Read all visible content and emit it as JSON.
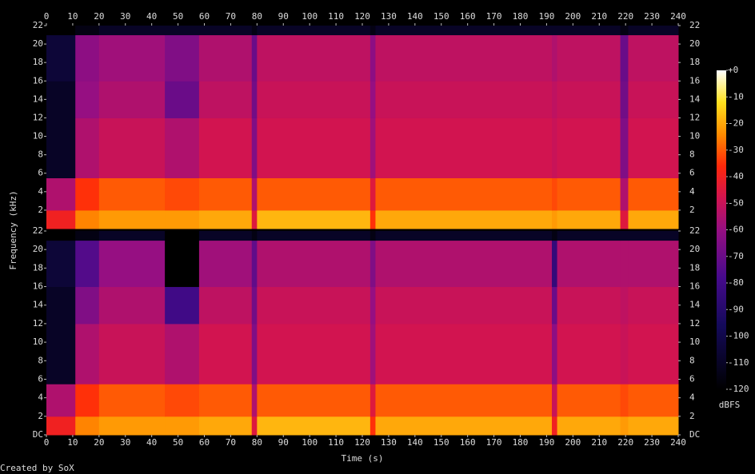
{
  "chart_data": [
    {
      "type": "heatmap",
      "x_edges": [
        0,
        11,
        20,
        45,
        58,
        78,
        80,
        123,
        125,
        192,
        194,
        218,
        221,
        240
      ],
      "y_edges": [
        0,
        2,
        5.5,
        12,
        16,
        21,
        22
      ],
      "z": [
        [
          -40,
          -25,
          -22,
          -22,
          -20,
          -45,
          -18,
          -35,
          -20,
          -22,
          -20,
          -45,
          -20
        ],
        [
          -55,
          -35,
          -30,
          -32,
          -30,
          -55,
          -30,
          -45,
          -30,
          -32,
          -30,
          -55,
          -30
        ],
        [
          -110,
          -55,
          -50,
          -55,
          -48,
          -65,
          -48,
          -58,
          -48,
          -50,
          -48,
          -65,
          -48
        ],
        [
          -110,
          -60,
          -55,
          -70,
          -52,
          -68,
          -50,
          -60,
          -50,
          -52,
          -50,
          -68,
          -50
        ],
        [
          -105,
          -62,
          -58,
          -65,
          -55,
          -70,
          -52,
          -62,
          -52,
          -55,
          -52,
          -70,
          -52
        ],
        [
          -120,
          -115,
          -110,
          -110,
          -110,
          -115,
          -110,
          -115,
          -110,
          -110,
          -110,
          -115,
          -110
        ]
      ],
      "xlim": [
        0,
        240
      ],
      "ylim": [
        0,
        22
      ],
      "xticks": [
        0,
        10,
        20,
        30,
        40,
        50,
        60,
        70,
        80,
        90,
        100,
        110,
        120,
        130,
        140,
        150,
        160,
        170,
        180,
        190,
        200,
        210,
        220,
        230,
        240
      ],
      "yticks": [
        2,
        4,
        6,
        8,
        10,
        12,
        14,
        16,
        18,
        20,
        22
      ]
    },
    {
      "type": "heatmap",
      "x_edges": [
        0,
        11,
        20,
        45,
        58,
        78,
        80,
        123,
        125,
        192,
        194,
        218,
        221,
        240
      ],
      "y_edges": [
        0,
        2,
        5.5,
        12,
        16,
        21,
        22
      ],
      "z": [
        [
          -40,
          -25,
          -22,
          -22,
          -20,
          -45,
          -18,
          -35,
          -20,
          -40,
          -20,
          -22,
          -20
        ],
        [
          -55,
          -35,
          -30,
          -32,
          -30,
          -55,
          -30,
          -45,
          -30,
          -50,
          -30,
          -32,
          -30
        ],
        [
          -110,
          -55,
          -50,
          -55,
          -48,
          -65,
          -48,
          -58,
          -48,
          -62,
          -48,
          -50,
          -48
        ],
        [
          -110,
          -65,
          -55,
          -80,
          -52,
          -68,
          -50,
          -60,
          -50,
          -70,
          -50,
          -52,
          -50
        ],
        [
          -105,
          -75,
          -60,
          -120,
          -58,
          -72,
          -55,
          -65,
          -55,
          -85,
          -55,
          -55,
          -55
        ],
        [
          -120,
          -115,
          -110,
          -120,
          -110,
          -115,
          -110,
          -115,
          -110,
          -115,
          -110,
          -110,
          -110
        ]
      ],
      "xlim": [
        0,
        240
      ],
      "ylim": [
        0,
        22
      ],
      "xticks": [
        0,
        10,
        20,
        30,
        40,
        50,
        60,
        70,
        80,
        90,
        100,
        110,
        120,
        130,
        140,
        150,
        160,
        170,
        180,
        190,
        200,
        210,
        220,
        230,
        240
      ],
      "yticks": [
        {
          "value": 0,
          "label": "DC"
        },
        2,
        4,
        6,
        8,
        10,
        12,
        14,
        16,
        18,
        20,
        22
      ],
      "xlabel": "Time (s)"
    }
  ],
  "ylabel": "Frequency (kHz)",
  "footer": "Created by SoX",
  "colorbar": {
    "label": "dBFS",
    "lim": [
      -120,
      0
    ],
    "ticks": [
      {
        "value": 0,
        "label": "+0"
      },
      -10,
      -20,
      -30,
      -40,
      -50,
      -60,
      -70,
      -80,
      -90,
      -100,
      -110,
      -120
    ]
  }
}
